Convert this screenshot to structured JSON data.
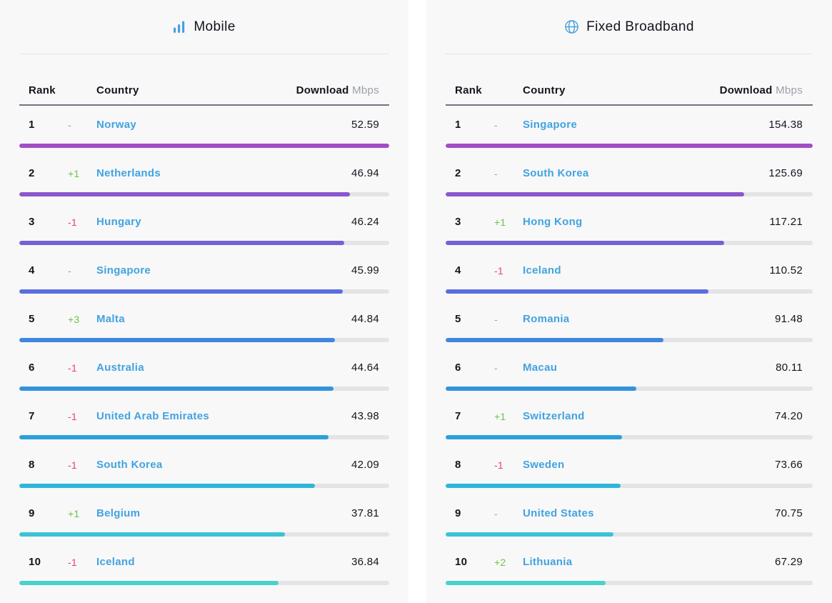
{
  "colors": {
    "accent_blue": "#41a3e0",
    "icon_blue": "#4aa0dc",
    "change_up_green": "#6cc644",
    "change_down_red": "#ed4164",
    "change_none_gray": "#a0a0a8",
    "bar_track": "#e4e4e7",
    "bar_palette_by_rank": [
      "#a44cc6",
      "#8a57ce",
      "#7660d6",
      "#5b6ddc",
      "#3f87de",
      "#3394dd",
      "#2ba0db",
      "#2fb5d8",
      "#3cc3d3",
      "#48d2cc"
    ]
  },
  "panels": [
    {
      "title": "Mobile",
      "icon": "bar-chart-icon",
      "columns": {
        "rank": "Rank",
        "country": "Country",
        "download": "Download",
        "unit": "Mbps"
      },
      "max_value": 52.59,
      "rows": [
        {
          "rank": "1",
          "change": "-",
          "country": "Norway",
          "value": "52.59",
          "bar_pct": 100
        },
        {
          "rank": "2",
          "change": "+1",
          "country": "Netherlands",
          "value": "46.94",
          "bar_pct": 89.3
        },
        {
          "rank": "3",
          "change": "-1",
          "country": "Hungary",
          "value": "46.24",
          "bar_pct": 87.9
        },
        {
          "rank": "4",
          "change": "-",
          "country": "Singapore",
          "value": "45.99",
          "bar_pct": 87.5
        },
        {
          "rank": "5",
          "change": "+3",
          "country": "Malta",
          "value": "44.84",
          "bar_pct": 85.3
        },
        {
          "rank": "6",
          "change": "-1",
          "country": "Australia",
          "value": "44.64",
          "bar_pct": 84.9
        },
        {
          "rank": "7",
          "change": "-1",
          "country": "United Arab Emirates",
          "value": "43.98",
          "bar_pct": 83.6
        },
        {
          "rank": "8",
          "change": "-1",
          "country": "South Korea",
          "value": "42.09",
          "bar_pct": 80.0
        },
        {
          "rank": "9",
          "change": "+1",
          "country": "Belgium",
          "value": "37.81",
          "bar_pct": 71.9
        },
        {
          "rank": "10",
          "change": "-1",
          "country": "Iceland",
          "value": "36.84",
          "bar_pct": 70.1
        }
      ]
    },
    {
      "title": "Fixed Broadband",
      "icon": "globe-icon",
      "columns": {
        "rank": "Rank",
        "country": "Country",
        "download": "Download",
        "unit": "Mbps"
      },
      "max_value": 154.38,
      "rows": [
        {
          "rank": "1",
          "change": "-",
          "country": "Singapore",
          "value": "154.38",
          "bar_pct": 100
        },
        {
          "rank": "2",
          "change": "-",
          "country": "South Korea",
          "value": "125.69",
          "bar_pct": 81.4
        },
        {
          "rank": "3",
          "change": "+1",
          "country": "Hong Kong",
          "value": "117.21",
          "bar_pct": 75.9
        },
        {
          "rank": "4",
          "change": "-1",
          "country": "Iceland",
          "value": "110.52",
          "bar_pct": 71.6
        },
        {
          "rank": "5",
          "change": "-",
          "country": "Romania",
          "value": "91.48",
          "bar_pct": 59.3
        },
        {
          "rank": "6",
          "change": "-",
          "country": "Macau",
          "value": "80.11",
          "bar_pct": 51.9
        },
        {
          "rank": "7",
          "change": "+1",
          "country": "Switzerland",
          "value": "74.20",
          "bar_pct": 48.1
        },
        {
          "rank": "8",
          "change": "-1",
          "country": "Sweden",
          "value": "73.66",
          "bar_pct": 47.7
        },
        {
          "rank": "9",
          "change": "-",
          "country": "United States",
          "value": "70.75",
          "bar_pct": 45.8
        },
        {
          "rank": "10",
          "change": "+2",
          "country": "Lithuania",
          "value": "67.29",
          "bar_pct": 43.6
        }
      ]
    }
  ],
  "chart_data": [
    {
      "type": "bar",
      "title": "Mobile",
      "ylabel": "Download Mbps",
      "categories": [
        "Norway",
        "Netherlands",
        "Hungary",
        "Singapore",
        "Malta",
        "Australia",
        "United Arab Emirates",
        "South Korea",
        "Belgium",
        "Iceland"
      ],
      "values": [
        52.59,
        46.94,
        46.24,
        45.99,
        44.84,
        44.64,
        43.98,
        42.09,
        37.81,
        36.84
      ],
      "ranks": [
        1,
        2,
        3,
        4,
        5,
        6,
        7,
        8,
        9,
        10
      ],
      "rank_changes": [
        "-",
        "+1",
        "-1",
        "-",
        "+3",
        "-1",
        "-1",
        "-1",
        "+1",
        "-1"
      ],
      "xlim": [
        0,
        52.59
      ],
      "orientation": "horizontal",
      "legend": "none"
    },
    {
      "type": "bar",
      "title": "Fixed Broadband",
      "ylabel": "Download Mbps",
      "categories": [
        "Singapore",
        "South Korea",
        "Hong Kong",
        "Iceland",
        "Romania",
        "Macau",
        "Switzerland",
        "Sweden",
        "United States",
        "Lithuania"
      ],
      "values": [
        154.38,
        125.69,
        117.21,
        110.52,
        91.48,
        80.11,
        74.2,
        73.66,
        70.75,
        67.29
      ],
      "ranks": [
        1,
        2,
        3,
        4,
        5,
        6,
        7,
        8,
        9,
        10
      ],
      "rank_changes": [
        "-",
        "-",
        "+1",
        "-1",
        "-",
        "-",
        "+1",
        "-1",
        "-",
        "+2"
      ],
      "xlim": [
        0,
        154.38
      ],
      "orientation": "horizontal",
      "legend": "none"
    }
  ]
}
